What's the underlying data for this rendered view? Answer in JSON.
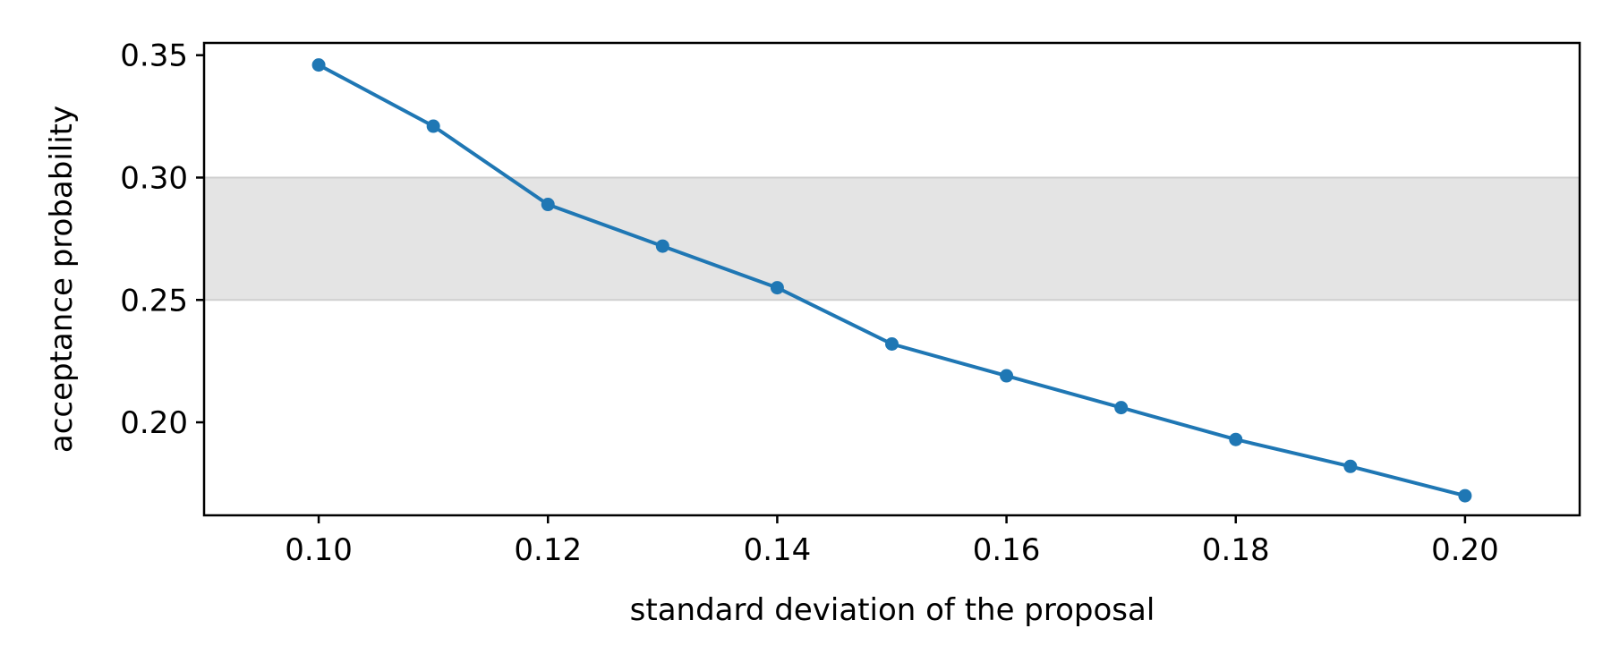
{
  "chart_data": {
    "type": "line",
    "title": "",
    "xlabel": "standard deviation of the proposal",
    "ylabel": "acceptance probability",
    "xlim": [
      0.09,
      0.21
    ],
    "ylim": [
      0.162,
      0.355
    ],
    "xticks": [
      0.1,
      0.12,
      0.14,
      0.16,
      0.18,
      0.2
    ],
    "xtick_labels": [
      "0.10",
      "0.12",
      "0.14",
      "0.16",
      "0.18",
      "0.20"
    ],
    "yticks": [
      0.2,
      0.25,
      0.3,
      0.35
    ],
    "ytick_labels": [
      "0.20",
      "0.25",
      "0.30",
      "0.35"
    ],
    "grid": false,
    "shaded_band": {
      "y_from": 0.25,
      "y_to": 0.3,
      "color": "#e4e4e4"
    },
    "series": [
      {
        "color": "#1f77b4",
        "marker": "circle",
        "x": [
          0.1,
          0.11,
          0.12,
          0.13,
          0.14,
          0.15,
          0.16,
          0.17,
          0.18,
          0.19,
          0.2
        ],
        "y": [
          0.346,
          0.321,
          0.289,
          0.272,
          0.255,
          0.232,
          0.219,
          0.206,
          0.193,
          0.182,
          0.17
        ]
      }
    ]
  }
}
